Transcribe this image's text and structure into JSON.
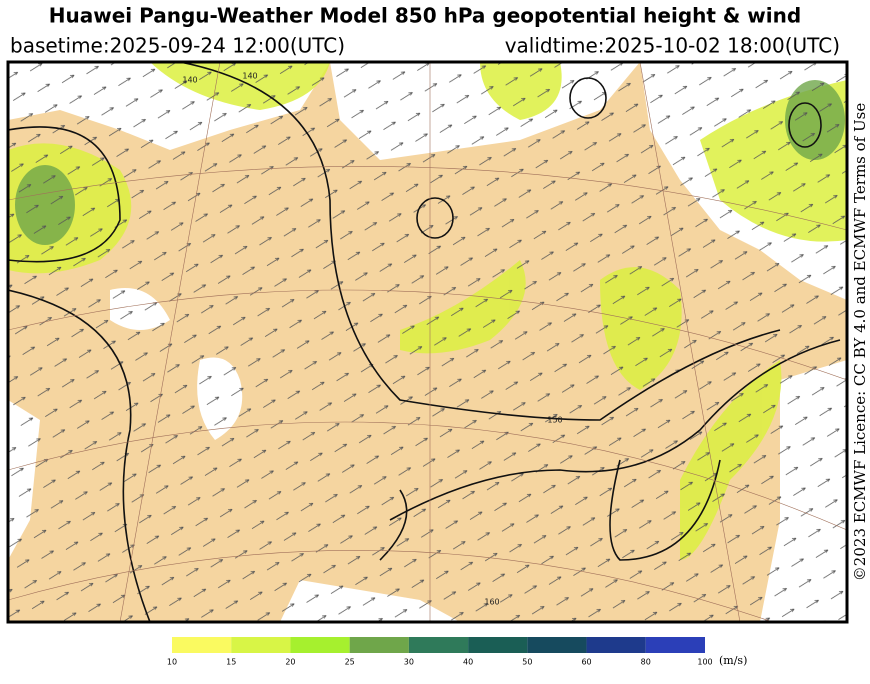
{
  "header": {
    "title": "Huawei Pangu-Weather Model 850 hPa geopotential height & wind",
    "basetime": "basetime:2025-09-24 12:00(UTC)",
    "validtime": "validtime:2025-10-02 18:00(UTC)"
  },
  "credit": "©2023 ECMWF Licence: CC BY 4.0 and ECMWF Terms of Use",
  "map": {
    "contour_labels": [
      "140",
      "140",
      "150",
      "160"
    ]
  },
  "colorbar": {
    "ticks": [
      10,
      15,
      20,
      25,
      30,
      40,
      50,
      60,
      80,
      100
    ],
    "colors": [
      "#fafa60",
      "#d8f546",
      "#a6f02e",
      "#6fa64a",
      "#2f7a5a",
      "#1a5e55",
      "#164a5e",
      "#1e3a8c",
      "#2b3fb8"
    ],
    "unit": "(m/s)"
  }
}
